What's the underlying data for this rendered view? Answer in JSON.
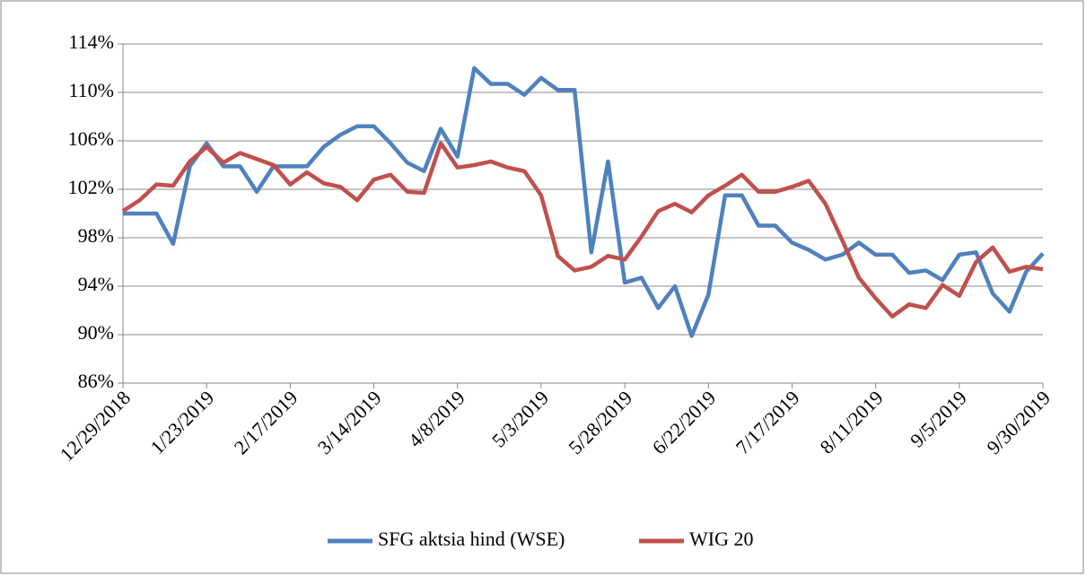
{
  "chart_data": {
    "type": "line",
    "x": [
      "2018-12-29",
      "2019-01-03",
      "2019-01-08",
      "2019-01-13",
      "2019-01-18",
      "2019-01-23",
      "2019-01-28",
      "2019-02-02",
      "2019-02-07",
      "2019-02-12",
      "2019-02-17",
      "2019-02-22",
      "2019-02-27",
      "2019-03-04",
      "2019-03-09",
      "2019-03-14",
      "2019-03-19",
      "2019-03-24",
      "2019-03-29",
      "2019-04-03",
      "2019-04-08",
      "2019-04-13",
      "2019-04-18",
      "2019-04-23",
      "2019-04-28",
      "2019-05-03",
      "2019-05-08",
      "2019-05-13",
      "2019-05-18",
      "2019-05-23",
      "2019-05-28",
      "2019-06-02",
      "2019-06-07",
      "2019-06-12",
      "2019-06-17",
      "2019-06-22",
      "2019-06-27",
      "2019-07-02",
      "2019-07-07",
      "2019-07-12",
      "2019-07-17",
      "2019-07-22",
      "2019-07-27",
      "2019-08-01",
      "2019-08-06",
      "2019-08-11",
      "2019-08-16",
      "2019-08-21",
      "2019-08-26",
      "2019-08-31",
      "2019-09-05",
      "2019-09-10",
      "2019-09-15",
      "2019-09-20",
      "2019-09-25",
      "2019-09-30"
    ],
    "series": [
      {
        "name": "SFG aktsia hind (WSE)",
        "color": "#4f81bd",
        "values": [
          100,
          100,
          100,
          97.5,
          103.9,
          105.8,
          103.9,
          103.9,
          101.8,
          103.9,
          103.9,
          103.9,
          105.5,
          106.5,
          107.2,
          107.2,
          105.8,
          104.2,
          103.5,
          107,
          104.7,
          112,
          110.7,
          110.7,
          109.8,
          111.2,
          110.2,
          110.2,
          96.8,
          104.3,
          94.3,
          94.7,
          92.2,
          94,
          89.9,
          93.3,
          101.5,
          101.5,
          99,
          99,
          97.6,
          97,
          96.2,
          96.6,
          97.6,
          96.6,
          96.6,
          95.1,
          95.3,
          94.5,
          96.6,
          96.8,
          93.4,
          91.9,
          95.2,
          96.7
        ]
      },
      {
        "name": "WIG 20",
        "color": "#c0504d",
        "values": [
          100.2,
          101.1,
          102.4,
          102.3,
          104.3,
          105.5,
          104.2,
          105,
          104.5,
          104,
          102.4,
          103.4,
          102.5,
          102.2,
          101.1,
          102.8,
          103.2,
          101.8,
          101.7,
          105.8,
          103.8,
          104,
          104.3,
          103.8,
          103.5,
          101.5,
          96.5,
          95.3,
          95.6,
          96.5,
          96.2,
          98.1,
          100.2,
          100.8,
          100.1,
          101.5,
          102.3,
          103.2,
          101.8,
          101.8,
          102.2,
          102.7,
          100.8,
          97.8,
          94.7,
          93,
          91.5,
          92.5,
          92.2,
          94.1,
          93.2,
          96,
          97.2,
          95.2,
          95.6,
          95.4
        ]
      }
    ],
    "xlim": [
      "2018-12-29",
      "2019-09-30"
    ],
    "xticks": [
      {
        "value": "2018-12-29",
        "label": "12/29/2018"
      },
      {
        "value": "2019-01-23",
        "label": "1/23/2019"
      },
      {
        "value": "2019-02-17",
        "label": "2/17/2019"
      },
      {
        "value": "2019-03-14",
        "label": "3/14/2019"
      },
      {
        "value": "2019-04-08",
        "label": "4/8/2019"
      },
      {
        "value": "2019-05-03",
        "label": "5/3/2019"
      },
      {
        "value": "2019-05-28",
        "label": "5/28/2019"
      },
      {
        "value": "2019-06-22",
        "label": "6/22/2019"
      },
      {
        "value": "2019-07-17",
        "label": "7/17/2019"
      },
      {
        "value": "2019-08-11",
        "label": "8/11/2019"
      },
      {
        "value": "2019-09-05",
        "label": "9/5/2019"
      },
      {
        "value": "2019-09-30",
        "label": "9/30/2019"
      }
    ],
    "ylim": [
      86,
      114
    ],
    "yticks": [
      {
        "value": 86,
        "label": "86%"
      },
      {
        "value": 90,
        "label": "90%"
      },
      {
        "value": 94,
        "label": "94%"
      },
      {
        "value": 98,
        "label": "98%"
      },
      {
        "value": 102,
        "label": "102%"
      },
      {
        "value": 106,
        "label": "106%"
      },
      {
        "value": 110,
        "label": "110%"
      },
      {
        "value": 114,
        "label": "114%"
      }
    ],
    "grid": true,
    "legend": "bottom"
  }
}
